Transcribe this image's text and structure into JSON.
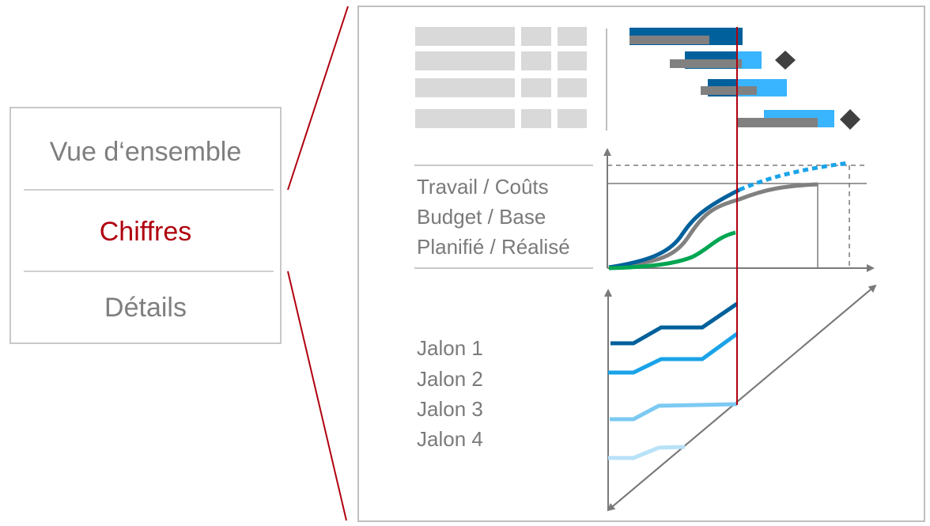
{
  "nav": {
    "items": [
      {
        "label": "Vue d‘ensemble",
        "active": false
      },
      {
        "label": "Chiffres",
        "active": true
      },
      {
        "label": "Détails",
        "active": false
      }
    ]
  },
  "detail": {
    "curves_section": {
      "labels": [
        "Travail / Coûts",
        "Budget / Base",
        "Planifié / Réalisé"
      ]
    },
    "milestone_section": {
      "labels": [
        "Jalon 1",
        "Jalon 2",
        "Jalon 3",
        "Jalon 4"
      ]
    }
  },
  "colors": {
    "accent_red": "#b0000f",
    "dark_blue": "#00609c",
    "light_blue": "#39b4ff",
    "pale_blue": "#7ccaf2",
    "palest_blue": "#b8e2f8",
    "gray_bar": "#808080",
    "green": "#00a651",
    "text_gray": "#7f7f7f",
    "placeholder_gray": "#d9d9d9"
  }
}
